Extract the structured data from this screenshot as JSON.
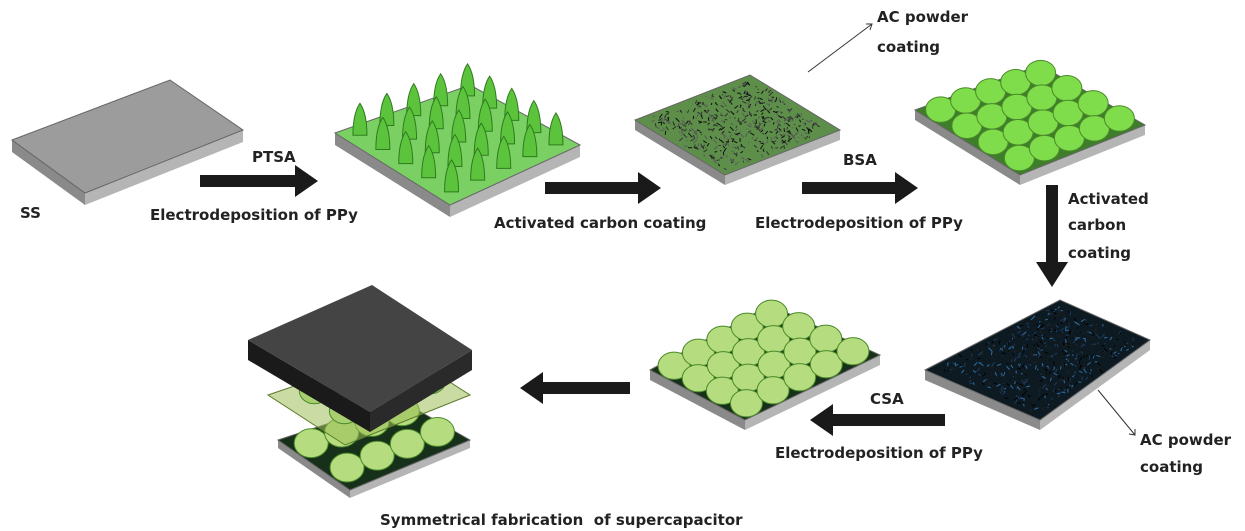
{
  "substrate": "SS",
  "steps": [
    {
      "dopant": "PTSA",
      "process": "Electrodeposition of PPy"
    },
    {
      "process": "Activated carbon coating",
      "callout": [
        "AC powder",
        "coating"
      ]
    },
    {
      "dopant": "BSA",
      "process": "Electrodeposition of PPy"
    },
    {
      "process": [
        "Activated",
        "carbon",
        "coating"
      ],
      "callout": [
        "AC powder",
        "coating"
      ]
    },
    {
      "dopant": "CSA",
      "process": "Electrodeposition of PPy"
    },
    {
      "process": "Symmetrical fabrication  of supercapacitor"
    }
  ]
}
